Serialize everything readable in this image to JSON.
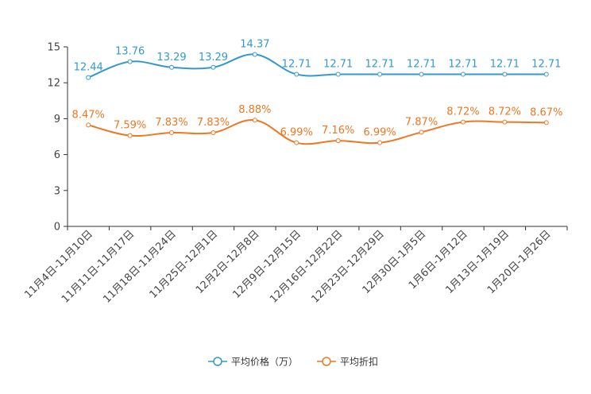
{
  "chart_data": {
    "type": "line",
    "title": "",
    "xlabel": "",
    "ylabel": "",
    "ylim": [
      0,
      15
    ],
    "yticks": [
      0,
      3,
      6,
      9,
      12,
      15
    ],
    "grid": false,
    "legend_position": "bottom-center",
    "categories": [
      "11月4日-11月10日",
      "11月11日-11月17日",
      "11月18日-11月24日",
      "11月25日-12月1日",
      "12月2日-12月8日",
      "12月9日-12月15日",
      "12月16日-12月22日",
      "12月23日-12月29日",
      "12月30日-1月5日",
      "1月6日-1月12日",
      "1月13日-1月19日",
      "1月20日-1月26日"
    ],
    "series": [
      {
        "name": "平均价格（万）",
        "color": "#3399cc",
        "values": [
          12.44,
          13.76,
          13.29,
          13.29,
          14.37,
          12.71,
          12.71,
          12.71,
          12.71,
          12.71,
          12.71,
          12.71
        ],
        "labels": [
          "12.44",
          "13.76",
          "13.29",
          "13.29",
          "14.37",
          "12.71",
          "12.71",
          "12.71",
          "12.71",
          "12.71",
          "12.71",
          "12.71"
        ]
      },
      {
        "name": "平均折扣",
        "color": "#ee7722",
        "values": [
          8.47,
          7.59,
          7.83,
          7.83,
          8.88,
          6.99,
          7.16,
          6.99,
          7.87,
          8.72,
          8.72,
          8.67
        ],
        "labels": [
          "8.47%",
          "7.59%",
          "7.83%",
          "7.83%",
          "8.88%",
          "6.99%",
          "7.16%",
          "6.99%",
          "7.87%",
          "8.72%",
          "8.72%",
          "8.67%"
        ]
      }
    ]
  }
}
